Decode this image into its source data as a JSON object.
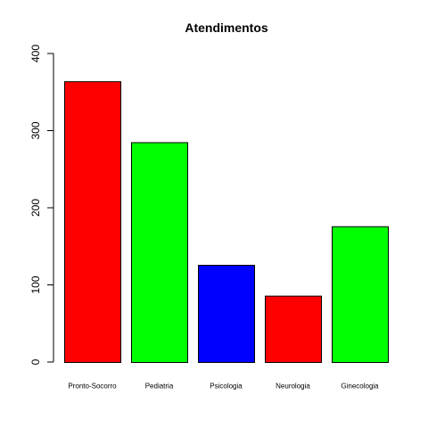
{
  "chart_data": {
    "type": "bar",
    "title": "Atendimentos",
    "xlabel": "",
    "ylabel": "",
    "categories": [
      "Pronto-Socorro",
      "Pediatria",
      "Psicologia",
      "Neurologia",
      "Ginecologia"
    ],
    "values": [
      364,
      285,
      126,
      86,
      176
    ],
    "colors": [
      "#ff0000",
      "#00ff00",
      "#0000ff",
      "#ff0000",
      "#00ff00"
    ],
    "ylim": [
      0,
      400
    ],
    "yticks": [
      0,
      100,
      200,
      300,
      400
    ],
    "grid": false,
    "legend": "none"
  }
}
